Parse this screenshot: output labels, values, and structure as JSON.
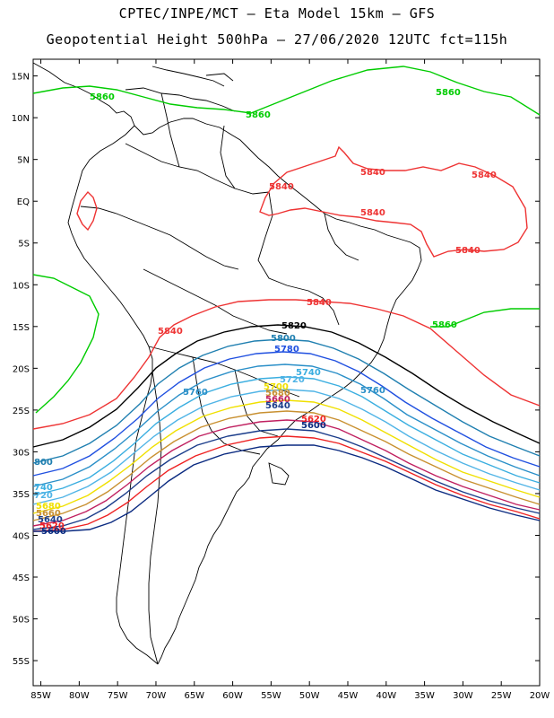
{
  "header": {
    "line1": "CPTEC/INPE/MCT –  Eta Model 15km – GFS",
    "line2": "Geopotential Height 500hPa – 27/06/2020 12UTC fct=115h"
  },
  "axes": {
    "lon_labels": [
      "85W",
      "80W",
      "75W",
      "70W",
      "65W",
      "60W",
      "55W",
      "50W",
      "45W",
      "40W",
      "35W",
      "30W",
      "25W",
      "20W"
    ],
    "lat_labels": [
      "15N",
      "10N",
      "5N",
      "EQ",
      "5S",
      "10S",
      "15S",
      "20S",
      "25S",
      "30S",
      "35S",
      "40S",
      "45S",
      "50S",
      "55S"
    ],
    "lon_range": [
      -86,
      -20
    ],
    "lat_range": [
      17,
      -58
    ]
  },
  "colors": {
    "5860": "#00cc00",
    "5840": "#ee3333",
    "5820": "#000000",
    "5800": "#1f7fb0",
    "5780": "#2050e0",
    "5760": "#2a8fc8",
    "5740": "#3aaee0",
    "5720": "#50b4e6",
    "5700": "#f0e000",
    "5680": "#c89030",
    "5660": "#c02060",
    "5640": "#1a3c8a",
    "5620": "#ee2222",
    "5600": "#0a2a80"
  },
  "contour_labels": [
    {
      "id": "c5860a",
      "text": "5860"
    },
    {
      "id": "c5860b",
      "text": "5860"
    },
    {
      "id": "c5860c",
      "text": "5860"
    },
    {
      "id": "c5860d",
      "text": "5860"
    },
    {
      "id": "c5840a",
      "text": "5840"
    },
    {
      "id": "c5840b",
      "text": "5840"
    },
    {
      "id": "c5840c",
      "text": "5840"
    },
    {
      "id": "c5840d",
      "text": "5840"
    },
    {
      "id": "c5840e",
      "text": "5840"
    },
    {
      "id": "c5840f",
      "text": "5840"
    },
    {
      "id": "c5840g",
      "text": "5840"
    },
    {
      "id": "c5820a",
      "text": "5820"
    },
    {
      "id": "c5800a",
      "text": "5800"
    },
    {
      "id": "c5780a",
      "text": "5780"
    },
    {
      "id": "c5760a",
      "text": "5760"
    },
    {
      "id": "c5760b",
      "text": "5760"
    },
    {
      "id": "c5740a",
      "text": "5740"
    },
    {
      "id": "c5720a",
      "text": "5720"
    },
    {
      "id": "c5700a",
      "text": "5700"
    },
    {
      "id": "c5680a",
      "text": "5680"
    },
    {
      "id": "c5660a",
      "text": "5660"
    },
    {
      "id": "c5640a",
      "text": "5640"
    },
    {
      "id": "c5620a",
      "text": "5620"
    },
    {
      "id": "c5600a",
      "text": "5600"
    },
    {
      "id": "e5800",
      "text": "800"
    },
    {
      "id": "e5740",
      "text": "740"
    },
    {
      "id": "e5720",
      "text": "720"
    },
    {
      "id": "e5680",
      "text": "5680"
    },
    {
      "id": "e5660",
      "text": "5660"
    },
    {
      "id": "e5640",
      "text": "5640"
    },
    {
      "id": "e5620",
      "text": "5620"
    },
    {
      "id": "e5600",
      "text": "5600"
    }
  ]
}
